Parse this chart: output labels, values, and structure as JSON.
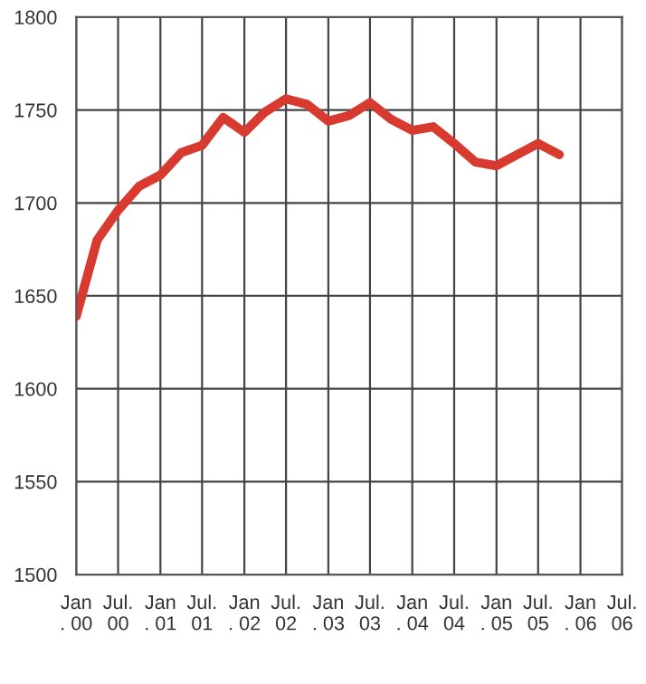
{
  "chart_data": {
    "type": "line",
    "x": [
      "2000-01",
      "2000-04",
      "2000-07",
      "2000-10",
      "2001-01",
      "2001-04",
      "2001-07",
      "2001-10",
      "2002-01",
      "2002-04",
      "2002-07",
      "2002-10",
      "2003-01",
      "2003-04",
      "2003-07",
      "2003-10",
      "2004-01",
      "2004-04",
      "2004-07",
      "2004-10",
      "2005-01",
      "2005-04",
      "2005-07",
      "2005-10"
    ],
    "series": [
      {
        "color": "#d93a30",
        "values": [
          1639,
          1680,
          1696,
          1709,
          1715,
          1727,
          1731,
          1746,
          1738,
          1749,
          1756,
          1753,
          1744,
          1747,
          1754,
          1745,
          1739,
          1741,
          1732,
          1722,
          1720,
          1726,
          1732,
          1726
        ]
      }
    ],
    "ylim": [
      1500,
      1800
    ],
    "yticks": [
      1500,
      1550,
      1600,
      1650,
      1700,
      1750,
      1800
    ],
    "xlim": [
      "2000-01",
      "2006-07"
    ],
    "xticks": [
      {
        "value": "2000-01",
        "label": "Jan\n. 00"
      },
      {
        "value": "2000-07",
        "label": "Jul.\n00"
      },
      {
        "value": "2001-01",
        "label": "Jan\n. 01"
      },
      {
        "value": "2001-07",
        "label": "Jul.\n01"
      },
      {
        "value": "2002-01",
        "label": "Jan\n. 02"
      },
      {
        "value": "2002-07",
        "label": "Jul.\n02"
      },
      {
        "value": "2003-01",
        "label": "Jan\n. 03"
      },
      {
        "value": "2003-07",
        "label": "Jul.\n03"
      },
      {
        "value": "2004-01",
        "label": "Jan\n. 04"
      },
      {
        "value": "2004-07",
        "label": "Jul.\n04"
      },
      {
        "value": "2005-01",
        "label": "Jan\n. 05"
      },
      {
        "value": "2005-07",
        "label": "Jul.\n05"
      },
      {
        "value": "2006-01",
        "label": "Jan\n. 06"
      },
      {
        "value": "2006-07",
        "label": "Jul.\n06"
      }
    ],
    "grid": true,
    "marker": "none",
    "line_style": "solid"
  }
}
